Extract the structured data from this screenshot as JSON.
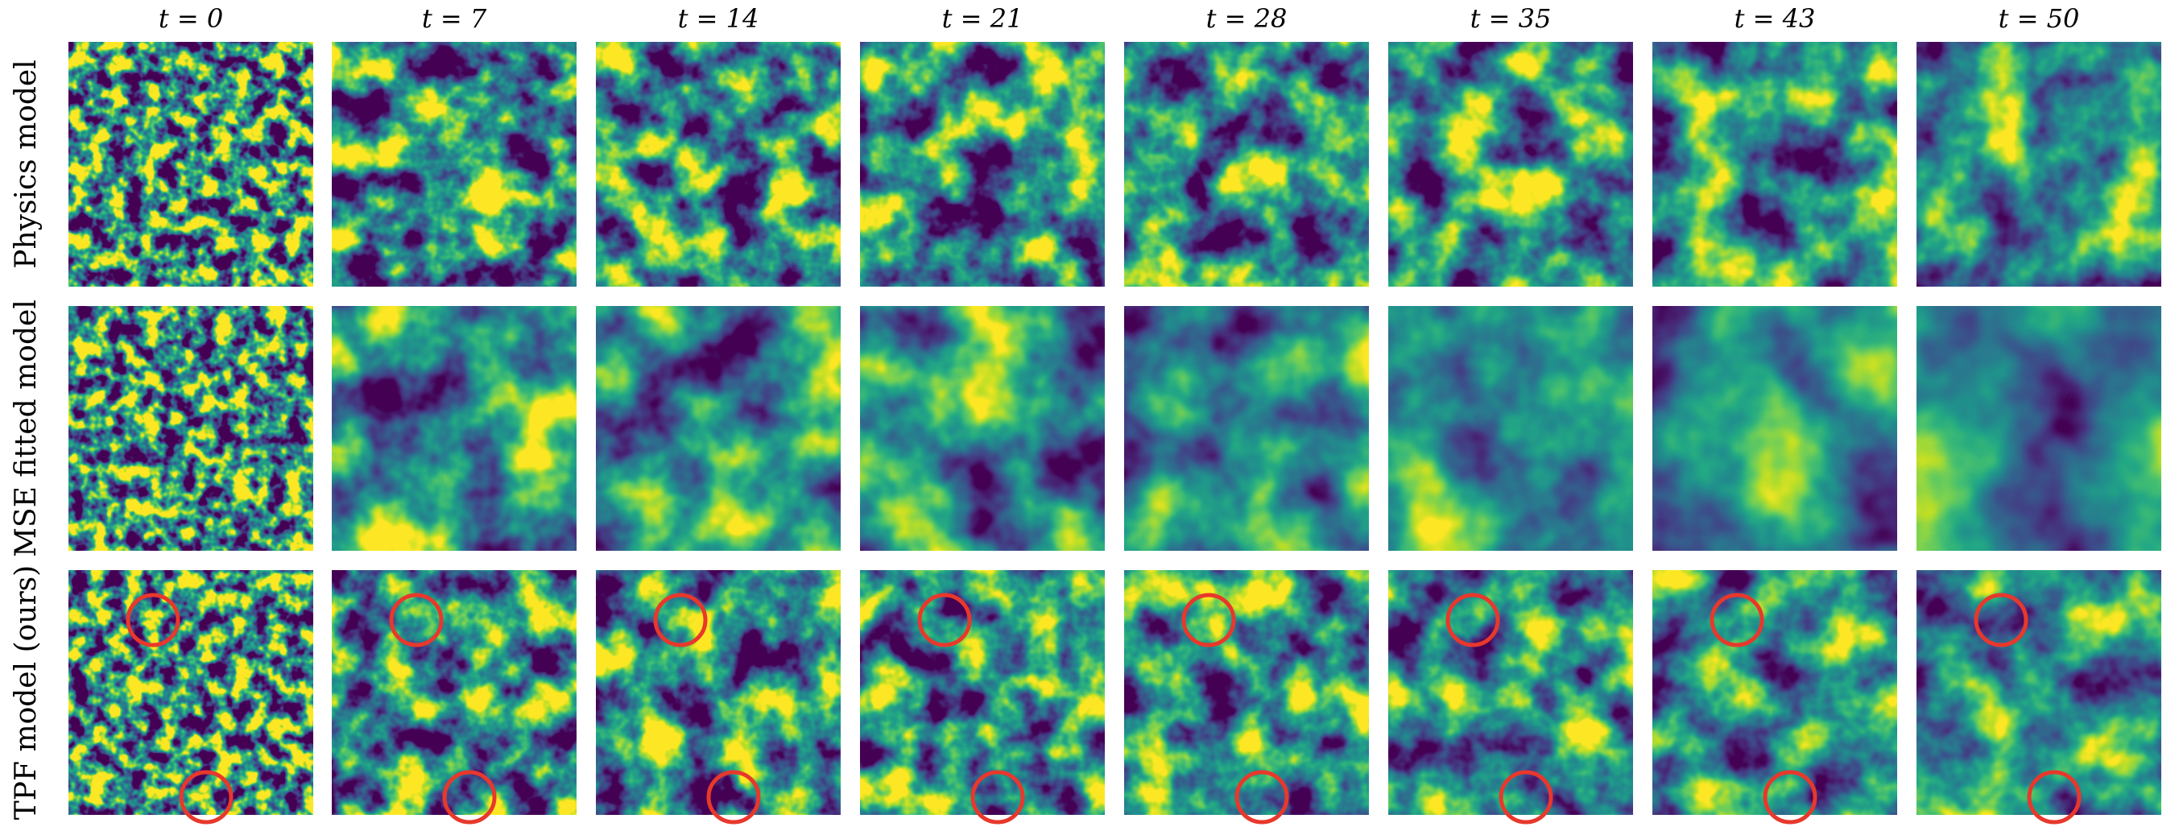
{
  "columns": [
    "t = 0",
    "t = 7",
    "t = 14",
    "t = 21",
    "t = 28",
    "t = 35",
    "t = 43",
    "t = 50"
  ],
  "rows": [
    "Physics model",
    "MSE fitted model",
    "TPF model (ours)"
  ]
}
